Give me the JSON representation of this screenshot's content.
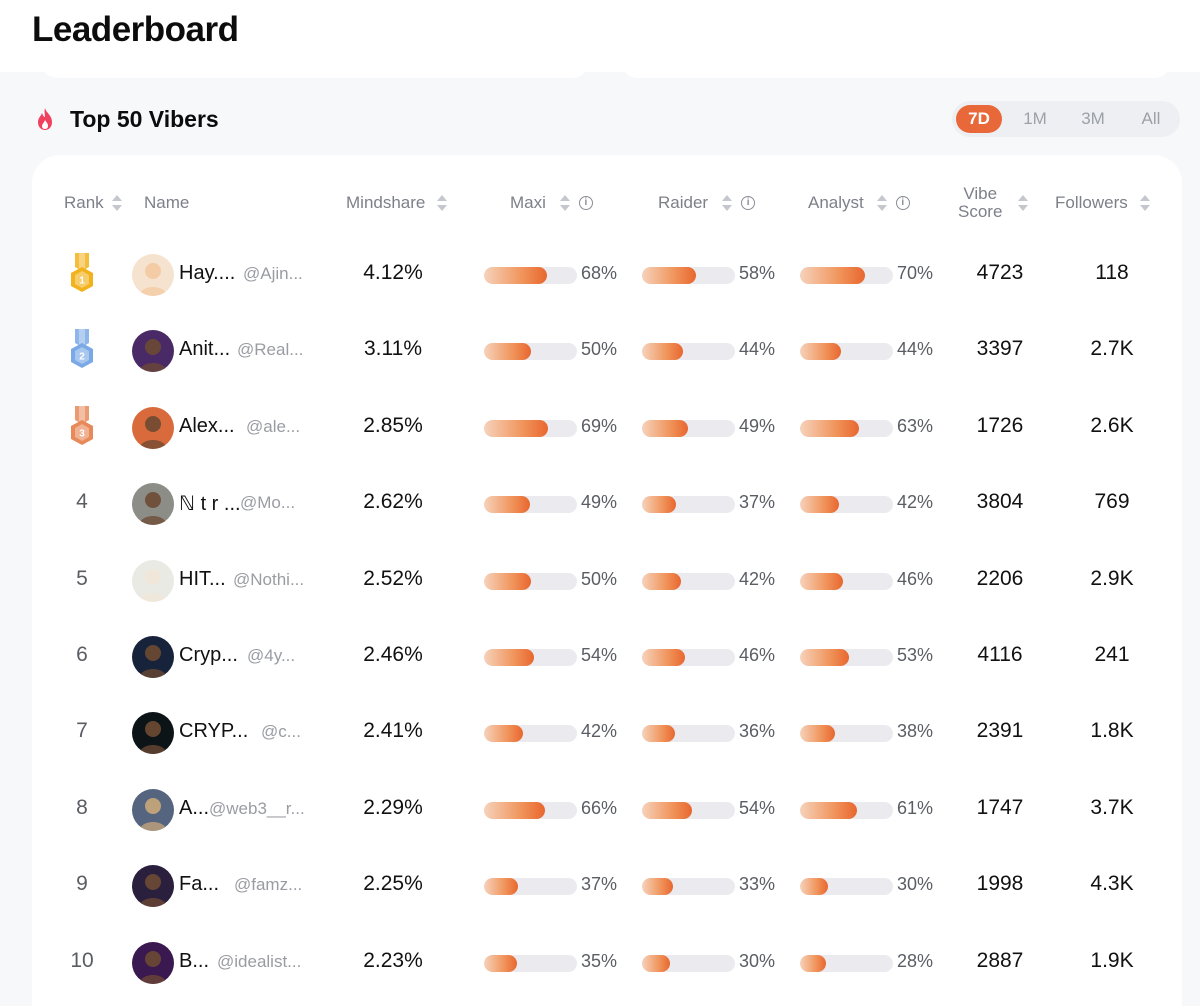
{
  "page": {
    "title": "Leaderboard"
  },
  "section": {
    "title": "Top 50 Vibers",
    "icon": "fire-icon"
  },
  "periods": [
    {
      "label": "7D",
      "active": true
    },
    {
      "label": "1M",
      "active": false
    },
    {
      "label": "3M",
      "active": false
    },
    {
      "label": "All",
      "active": false
    }
  ],
  "columns": {
    "rank": "Rank",
    "name": "Name",
    "mindshare": "Mindshare",
    "maxi": "Maxi",
    "raider": "Raider",
    "analyst": "Analyst",
    "vibe_line1": "Vibe",
    "vibe_line2": "Score",
    "followers": "Followers"
  },
  "colors": {
    "accent": "#e8683a",
    "gold": "#f2b21b",
    "silver": "#7aa9e6",
    "bronze": "#e8895a"
  },
  "rows": [
    {
      "rank": "",
      "medal": "gold",
      "medal_num": "1",
      "name": "Hay....",
      "handle": "@Ajin...",
      "mindshare": "4.12%",
      "maxi": 68,
      "maxi_label": "68%",
      "raider": 58,
      "raider_label": "58%",
      "analyst": 70,
      "analyst_label": "70%",
      "vibe": "4723",
      "followers": "118",
      "avatar_color": "#f6e3cf"
    },
    {
      "rank": "",
      "medal": "silver",
      "medal_num": "2",
      "name": "Anit...",
      "handle": "@Real...",
      "mindshare": "3.11%",
      "maxi": 50,
      "maxi_label": "50%",
      "raider": 44,
      "raider_label": "44%",
      "analyst": 44,
      "analyst_label": "44%",
      "vibe": "3397",
      "followers": "2.7K",
      "avatar_color": "#4a2a66"
    },
    {
      "rank": "",
      "medal": "bronze",
      "medal_num": "3",
      "name": "Alex...",
      "handle": "@ale...",
      "mindshare": "2.85%",
      "maxi": 69,
      "maxi_label": "69%",
      "raider": 49,
      "raider_label": "49%",
      "analyst": 63,
      "analyst_label": "63%",
      "vibe": "1726",
      "followers": "2.6K",
      "avatar_color": "#d96a3b"
    },
    {
      "rank": "4",
      "medal": "",
      "medal_num": "",
      "name": "ℕ t r ...",
      "handle": "@Mo...",
      "mindshare": "2.62%",
      "maxi": 49,
      "maxi_label": "49%",
      "raider": 37,
      "raider_label": "37%",
      "analyst": 42,
      "analyst_label": "42%",
      "vibe": "3804",
      "followers": "769",
      "avatar_color": "#8d8d88"
    },
    {
      "rank": "5",
      "medal": "",
      "medal_num": "",
      "name": "HIT...",
      "handle": "@Nothi...",
      "mindshare": "2.52%",
      "maxi": 50,
      "maxi_label": "50%",
      "raider": 42,
      "raider_label": "42%",
      "analyst": 46,
      "analyst_label": "46%",
      "vibe": "2206",
      "followers": "2.9K",
      "avatar_color": "#e9eae4"
    },
    {
      "rank": "6",
      "medal": "",
      "medal_num": "",
      "name": "Cryp...",
      "handle": "@4y...",
      "mindshare": "2.46%",
      "maxi": 54,
      "maxi_label": "54%",
      "raider": 46,
      "raider_label": "46%",
      "analyst": 53,
      "analyst_label": "53%",
      "vibe": "4116",
      "followers": "241",
      "avatar_color": "#16233a"
    },
    {
      "rank": "7",
      "medal": "",
      "medal_num": "",
      "name": "CRYP...",
      "handle": "@c...",
      "mindshare": "2.41%",
      "maxi": 42,
      "maxi_label": "42%",
      "raider": 36,
      "raider_label": "36%",
      "analyst": 38,
      "analyst_label": "38%",
      "vibe": "2391",
      "followers": "1.8K",
      "avatar_color": "#0c1418"
    },
    {
      "rank": "8",
      "medal": "",
      "medal_num": "",
      "name": "A...",
      "handle": "@web3__r...",
      "mindshare": "2.29%",
      "maxi": 66,
      "maxi_label": "66%",
      "raider": 54,
      "raider_label": "54%",
      "analyst": 61,
      "analyst_label": "61%",
      "vibe": "1747",
      "followers": "3.7K",
      "avatar_color": "#56657f"
    },
    {
      "rank": "9",
      "medal": "",
      "medal_num": "",
      "name": "Fa...",
      "handle": "@famz...",
      "mindshare": "2.25%",
      "maxi": 37,
      "maxi_label": "37%",
      "raider": 33,
      "raider_label": "33%",
      "analyst": 30,
      "analyst_label": "30%",
      "vibe": "1998",
      "followers": "4.3K",
      "avatar_color": "#2a1f3d"
    },
    {
      "rank": "10",
      "medal": "",
      "medal_num": "",
      "name": "B...",
      "handle": "@idealist...",
      "mindshare": "2.23%",
      "maxi": 35,
      "maxi_label": "35%",
      "raider": 30,
      "raider_label": "30%",
      "analyst": 28,
      "analyst_label": "28%",
      "vibe": "2887",
      "followers": "1.9K",
      "avatar_color": "#3a1850"
    }
  ]
}
